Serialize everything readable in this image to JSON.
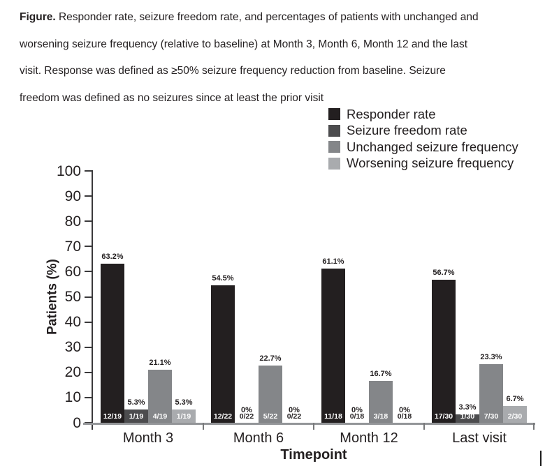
{
  "caption": {
    "label": "Figure.",
    "line1": " Responder rate, seizure freedom rate, and percentages of patients with unchanged and",
    "line2": "worsening seizure frequency (relative to baseline) at Month 3, Month 6, Month 12 and the last",
    "line3": "visit. Response was defined as ≥50% seizure frequency reduction from baseline. Seizure",
    "line4": "freedom was defined as no seizures since at least the prior visit"
  },
  "chart_data": {
    "type": "bar",
    "title": "",
    "xlabel": "Timepoint",
    "ylabel": "Patients (%)",
    "ylim": [
      0,
      100
    ],
    "ytick_step": 10,
    "grid": false,
    "legend_position": "top-right",
    "categories": [
      "Month 3",
      "Month 6",
      "Month 12",
      "Last visit"
    ],
    "series": [
      {
        "name": "Responder rate",
        "color": "#231f20",
        "values": [
          63.2,
          54.5,
          61.1,
          56.7
        ],
        "value_labels": [
          "63.2%",
          "54.5%",
          "61.1%",
          "56.7%"
        ],
        "fractions": [
          "12/19",
          "12/22",
          "11/18",
          "17/30"
        ]
      },
      {
        "name": "Seizure freedom rate",
        "color": "#4c4c4e",
        "values": [
          5.3,
          0,
          0,
          3.3
        ],
        "value_labels": [
          "5.3%",
          "0%",
          "0%",
          "3.3%"
        ],
        "fractions": [
          "1/19",
          "0/22",
          "0/18",
          "1/30"
        ]
      },
      {
        "name": "Unchanged seizure frequency",
        "color": "#848689",
        "values": [
          21.1,
          22.7,
          16.7,
          23.3
        ],
        "value_labels": [
          "21.1%",
          "22.7%",
          "16.7%",
          "23.3%"
        ],
        "fractions": [
          "4/19",
          "5/22",
          "3/18",
          "7/30"
        ]
      },
      {
        "name": "Worsening seizure frequency",
        "color": "#a9abae",
        "values": [
          5.3,
          0,
          0,
          6.7
        ],
        "value_labels": [
          "5.3%",
          "0%",
          "0%",
          "6.7%"
        ],
        "fractions": [
          "1/19",
          "0/22",
          "0/18",
          "2/30"
        ]
      }
    ]
  }
}
